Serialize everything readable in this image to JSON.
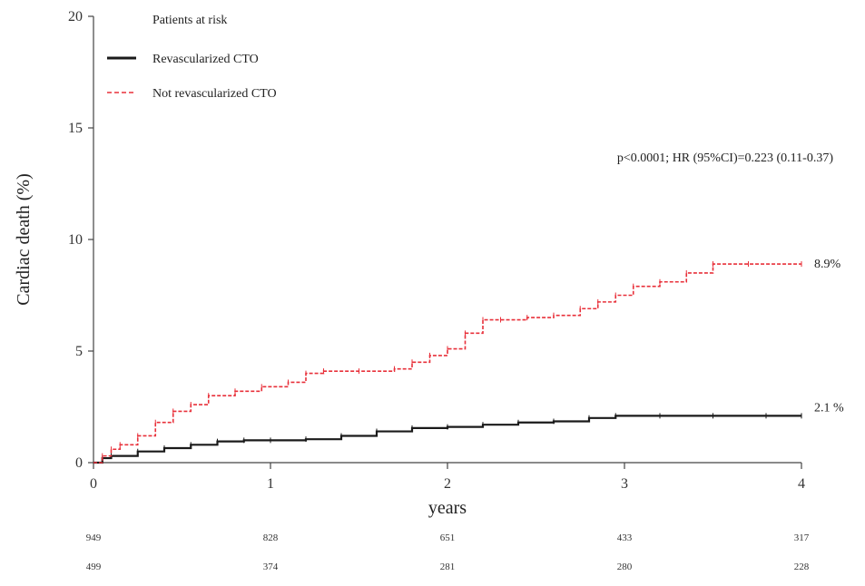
{
  "chart_data": {
    "type": "line",
    "xlabel": "years",
    "ylabel": "Cardiac death (%)",
    "xlim": [
      0,
      4
    ],
    "ylim": [
      0,
      20
    ],
    "x_ticks": [
      "0",
      "1",
      "2",
      "3",
      "4"
    ],
    "y_ticks": [
      "0",
      "5",
      "10",
      "15",
      "20"
    ],
    "legend_title": "Patients at risk",
    "legend_position": "top-left",
    "annotation": "p<0.0001; HR (95%CI)=0.223 (0.11-0.37)",
    "series": [
      {
        "name": "Revascularized CTO",
        "color": "#1a1a1a",
        "end_label": "2.1 %",
        "points": [
          [
            0,
            0
          ],
          [
            0.05,
            0.2
          ],
          [
            0.1,
            0.3
          ],
          [
            0.25,
            0.5
          ],
          [
            0.4,
            0.65
          ],
          [
            0.55,
            0.8
          ],
          [
            0.7,
            0.95
          ],
          [
            0.85,
            1.0
          ],
          [
            1.0,
            1.0
          ],
          [
            1.2,
            1.05
          ],
          [
            1.4,
            1.2
          ],
          [
            1.6,
            1.4
          ],
          [
            1.8,
            1.55
          ],
          [
            2.0,
            1.6
          ],
          [
            2.2,
            1.7
          ],
          [
            2.4,
            1.8
          ],
          [
            2.6,
            1.85
          ],
          [
            2.8,
            2.0
          ],
          [
            2.95,
            2.1
          ],
          [
            3.2,
            2.1
          ],
          [
            3.5,
            2.1
          ],
          [
            3.8,
            2.1
          ],
          [
            4.0,
            2.1
          ]
        ]
      },
      {
        "name": "Not revascularized CTO",
        "color": "#e8303a",
        "end_label": "8.9%",
        "points": [
          [
            0,
            0
          ],
          [
            0.05,
            0.3
          ],
          [
            0.1,
            0.6
          ],
          [
            0.15,
            0.8
          ],
          [
            0.25,
            1.2
          ],
          [
            0.35,
            1.8
          ],
          [
            0.45,
            2.3
          ],
          [
            0.55,
            2.6
          ],
          [
            0.65,
            3.0
          ],
          [
            0.8,
            3.2
          ],
          [
            0.95,
            3.4
          ],
          [
            1.1,
            3.6
          ],
          [
            1.2,
            4.0
          ],
          [
            1.3,
            4.1
          ],
          [
            1.5,
            4.1
          ],
          [
            1.7,
            4.2
          ],
          [
            1.8,
            4.5
          ],
          [
            1.9,
            4.8
          ],
          [
            2.0,
            5.1
          ],
          [
            2.1,
            5.8
          ],
          [
            2.2,
            6.4
          ],
          [
            2.3,
            6.4
          ],
          [
            2.45,
            6.5
          ],
          [
            2.6,
            6.6
          ],
          [
            2.75,
            6.9
          ],
          [
            2.85,
            7.2
          ],
          [
            2.95,
            7.5
          ],
          [
            3.05,
            7.9
          ],
          [
            3.2,
            8.1
          ],
          [
            3.35,
            8.5
          ],
          [
            3.5,
            8.9
          ],
          [
            3.7,
            8.9
          ],
          [
            4.0,
            8.9
          ]
        ]
      }
    ],
    "risk_table": [
      {
        "series": "Revascularized CTO",
        "values": [
          "949",
          "828",
          "651",
          "433",
          "317"
        ]
      },
      {
        "series": "Not revascularized CTO",
        "values": [
          "499",
          "374",
          "281",
          "280",
          "228"
        ]
      }
    ]
  }
}
